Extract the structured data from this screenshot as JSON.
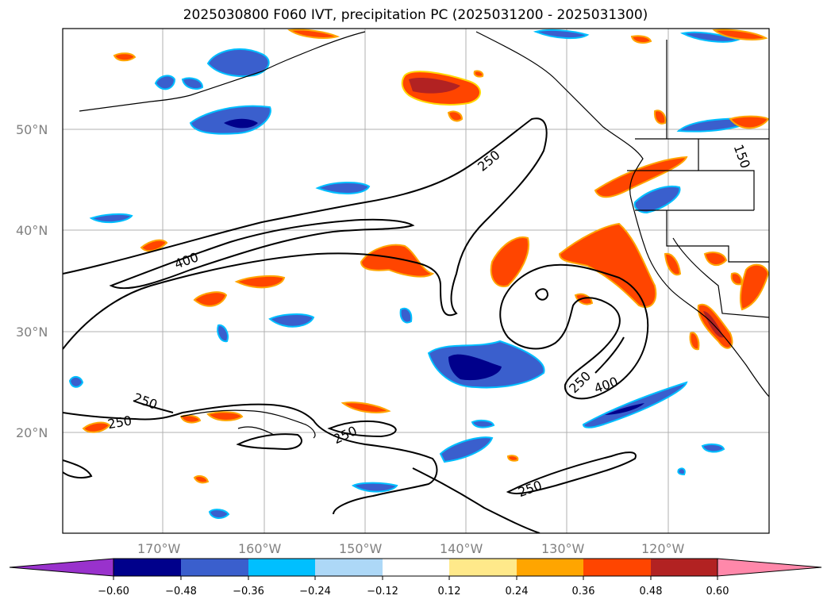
{
  "title": "2025030800 F060 IVT, precipitation PC (2025031200 - 2025031300)",
  "map": {
    "projection": "cylindrical",
    "lon_range": [
      -180,
      -110
    ],
    "lat_range": [
      10,
      60
    ],
    "lat_ticks": [
      {
        "label": "50°N"
      },
      {
        "label": "40°N"
      },
      {
        "label": "30°N"
      },
      {
        "label": "20°N"
      }
    ],
    "lon_ticks": [
      {
        "label": "170°W"
      },
      {
        "label": "160°W"
      },
      {
        "label": "150°W"
      },
      {
        "label": "140°W"
      },
      {
        "label": "130°W"
      },
      {
        "label": "120°W"
      }
    ],
    "contour_labels": [
      "250",
      "400",
      "250",
      "250",
      "250",
      "250",
      "400",
      "250",
      "150"
    ],
    "grid": true
  },
  "colorbar": {
    "ticks": [
      "−0.60",
      "−0.48",
      "−0.36",
      "−0.24",
      "−0.12",
      "0.12",
      "0.24",
      "0.36",
      "0.48",
      "0.60"
    ],
    "colors": [
      "#9932cc",
      "#00008b",
      "#3a5fcd",
      "#00bfff",
      "#add8f7",
      "#ffffff",
      "#ffe98a",
      "#ffa500",
      "#ff4500",
      "#b22222",
      "#ff88aa"
    ]
  },
  "colors": {
    "neg_strong": "#00008b",
    "neg_mid": "#3a5fcd",
    "neg_light": "#00bfff",
    "pos_mid": "#ff4500",
    "pos_strong": "#b22222",
    "pos_light": "#ffa500",
    "pos_lighter": "#ffd700"
  }
}
